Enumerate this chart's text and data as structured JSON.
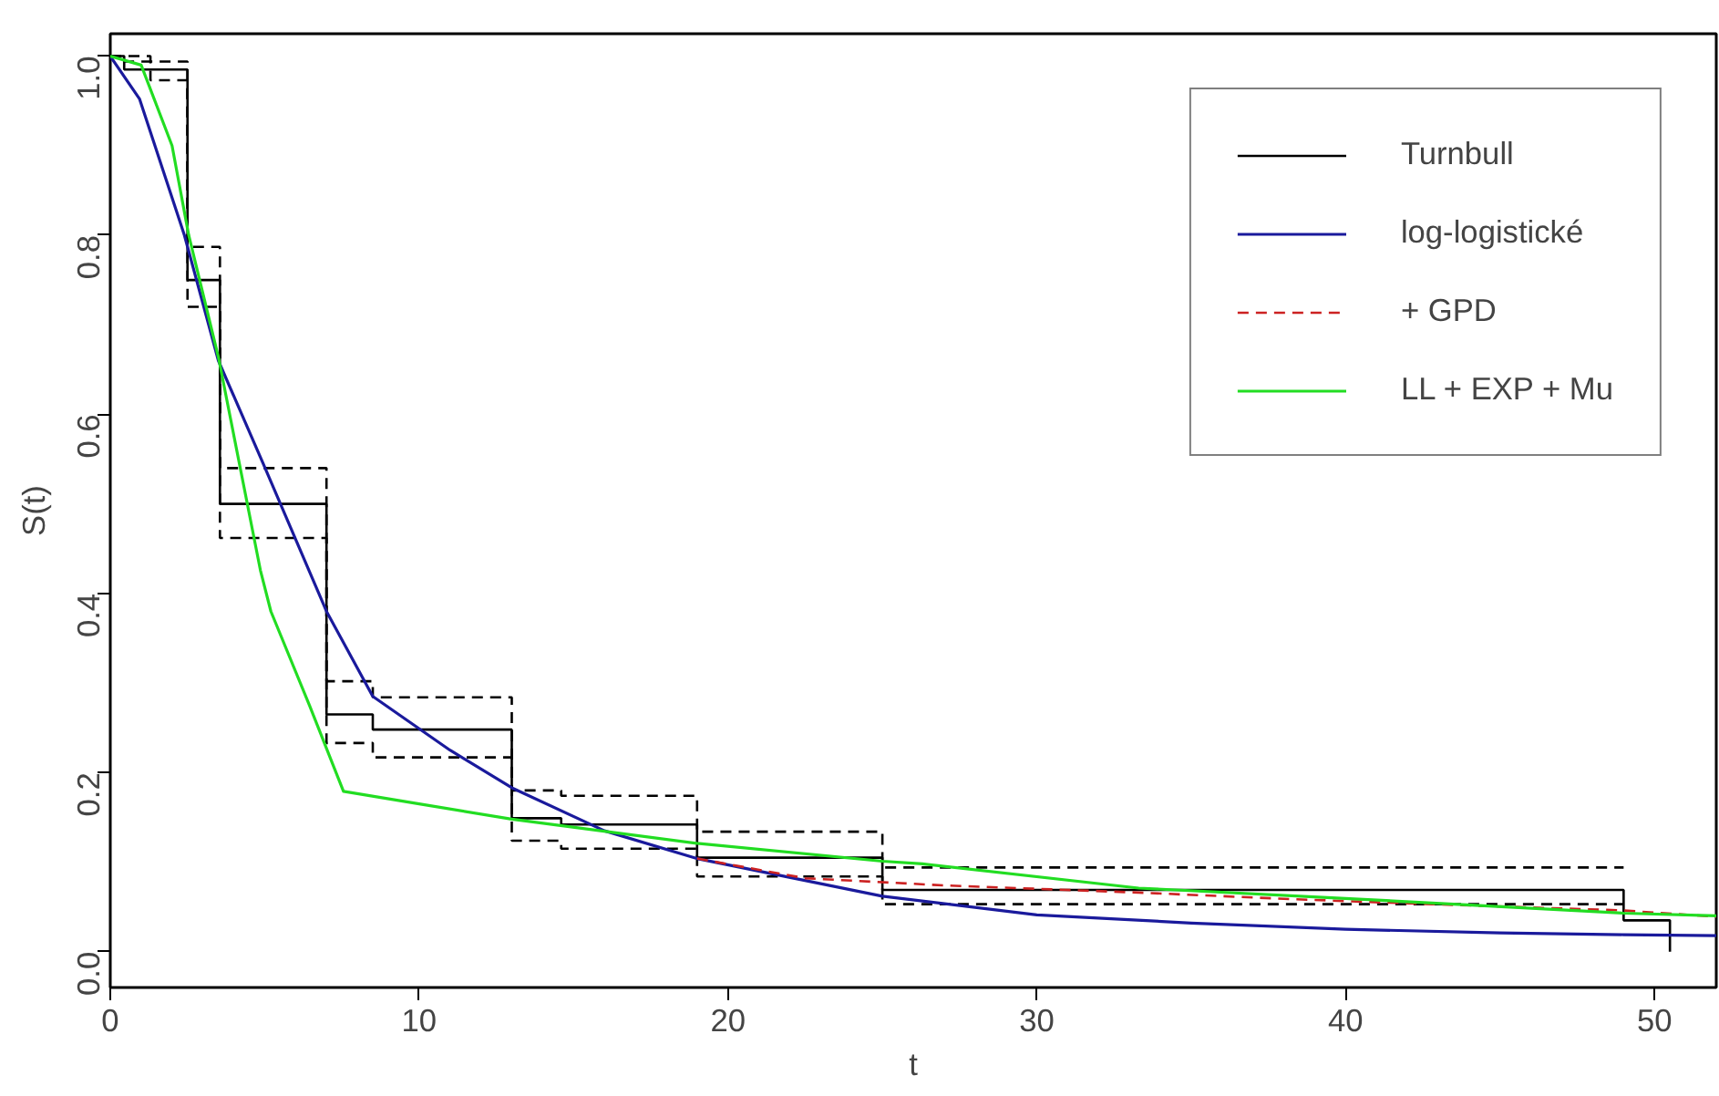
{
  "chart_data": {
    "type": "line",
    "xlabel": "t",
    "ylabel": "S(t)",
    "xlim": [
      0,
      52
    ],
    "ylim": [
      -0.04,
      1.025
    ],
    "xticks": [
      0,
      10,
      20,
      30,
      40,
      50
    ],
    "yticks": [
      {
        "value": 0,
        "label": "0.0"
      },
      {
        "value": 0.2,
        "label": "0.2"
      },
      {
        "value": 0.4,
        "label": "0.4"
      },
      {
        "value": 0.6,
        "label": "0.6"
      },
      {
        "value": 0.8,
        "label": "0.8"
      },
      {
        "value": 1,
        "label": "1.0"
      }
    ],
    "grid": false,
    "legend": "top right",
    "marker": "none",
    "series": [
      {
        "name": "Turnbull",
        "type": "step",
        "color": "#000000",
        "line_style": "solid",
        "x": [
          0,
          0.45,
          2.5,
          3.55,
          7,
          8.5,
          13,
          14.6,
          19,
          25,
          49,
          50.5
        ],
        "values": [
          1,
          0.985,
          0.75,
          0.5,
          0.265,
          0.248,
          0.149,
          0.142,
          0.105,
          0.069,
          0.035,
          0
        ]
      },
      {
        "type": "step",
        "color": "#000000",
        "line_style": "dashed",
        "x": [
          0,
          0.45,
          2.5,
          3.55,
          7,
          8.5,
          13,
          14.6,
          19,
          25,
          49
        ],
        "values": [
          1,
          0.994,
          0.787,
          0.54,
          0.302,
          0.284,
          0.18,
          0.174,
          0.134,
          0.094,
          0.094
        ]
      },
      {
        "type": "step",
        "color": "#000000",
        "line_style": "dashed",
        "x": [
          0,
          1.3,
          2.5,
          3.55,
          7,
          8.5,
          13,
          14.6,
          19,
          25,
          49
        ],
        "values": [
          1,
          0.973,
          0.72,
          0.462,
          0.233,
          0.217,
          0.124,
          0.115,
          0.084,
          0.053,
          0.053
        ]
      },
      {
        "name": "log-logistické",
        "color": "#1a1a9c",
        "line_style": "solid",
        "x": [
          0,
          0.95,
          2.4,
          3.5,
          4.95,
          7,
          8.5,
          11,
          13,
          16,
          19,
          25,
          30,
          35,
          40,
          45,
          49,
          52
        ],
        "values": [
          1,
          0.952,
          0.8,
          0.66,
          0.545,
          0.38,
          0.285,
          0.225,
          0.183,
          0.135,
          0.104,
          0.062,
          0.041,
          0.032,
          0.025,
          0.021,
          0.019,
          0.018
        ]
      },
      {
        "name": "+ GPD",
        "color": "#cc2222",
        "line_style": "dashed",
        "x": [
          19,
          22.5,
          27,
          33.3,
          38,
          42.8,
          49,
          52
        ],
        "values": [
          0.104,
          0.082,
          0.074,
          0.066,
          0.059,
          0.053,
          0.046,
          0.039
        ]
      },
      {
        "name": "LL + EXP + Mu",
        "color": "#22dd22",
        "line_style": "solid",
        "x": [
          0,
          1,
          2,
          2.54,
          3.5,
          4.86,
          5.2,
          6.45,
          7.55,
          10,
          13,
          19,
          25,
          26.3,
          33.3,
          39.7,
          49,
          52
        ],
        "values": [
          1,
          0.99,
          0.9,
          0.8,
          0.664,
          0.426,
          0.38,
          0.275,
          0.179,
          0.165,
          0.148,
          0.121,
          0.101,
          0.098,
          0.071,
          0.06,
          0.043,
          0.04
        ]
      }
    ]
  }
}
